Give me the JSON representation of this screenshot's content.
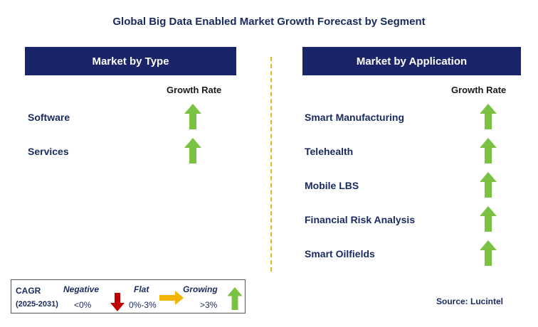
{
  "title": "Global Big Data Enabled Market Growth Forecast by Segment",
  "left_panel": {
    "header": "Market by Type",
    "column_header": "Growth Rate",
    "rows": [
      {
        "label": "Software",
        "trend": "growing"
      },
      {
        "label": "Services",
        "trend": "growing"
      }
    ]
  },
  "right_panel": {
    "header": "Market by Application",
    "column_header": "Growth Rate",
    "rows": [
      {
        "label": "Smart Manufacturing",
        "trend": "growing"
      },
      {
        "label": "Telehealth",
        "trend": "growing"
      },
      {
        "label": "Mobile LBS",
        "trend": "growing"
      },
      {
        "label": "Financial Risk Analysis",
        "trend": "growing"
      },
      {
        "label": "Smart Oilfields",
        "trend": "growing"
      }
    ]
  },
  "legend": {
    "cagr_label": "CAGR",
    "period": "(2025-2031)",
    "negative_label": "Negative",
    "negative_range": "<0%",
    "flat_label": "Flat",
    "flat_range": "0%-3%",
    "growing_label": "Growing",
    "growing_range": ">3%"
  },
  "source": "Source: Lucintel",
  "colors": {
    "header_bg": "#1a2468",
    "growing": "#7cc242",
    "negative": "#c00000",
    "flat": "#f5b400",
    "divider": "#f2b21c"
  }
}
